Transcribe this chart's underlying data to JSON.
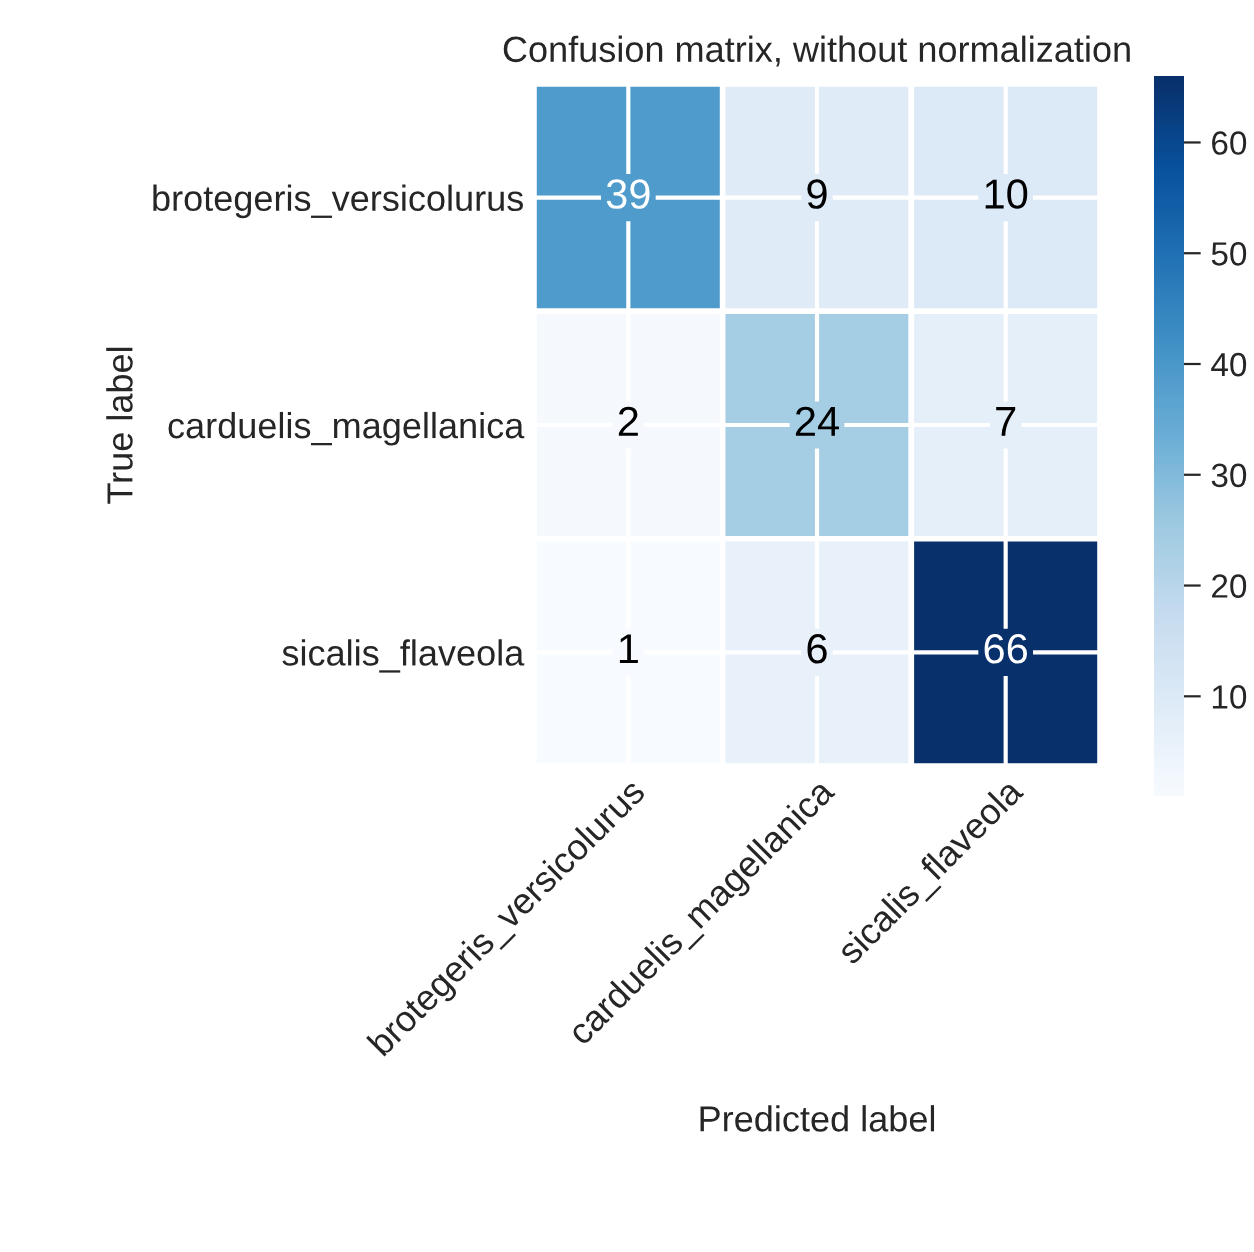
{
  "chart_data": {
    "type": "heatmap",
    "title": "Confusion matrix, without normalization",
    "xlabel": "Predicted label",
    "ylabel": "True label",
    "categories": [
      "brotegeris_versicolurus",
      "carduelis_magellanica",
      "sicalis_flaveola"
    ],
    "y_categories": [
      "brotegeris_versicolurus",
      "carduelis_magellanica",
      "sicalis_flaveola"
    ],
    "cells": [
      [
        39,
        9,
        10
      ],
      [
        2,
        24,
        7
      ],
      [
        1,
        6,
        66
      ]
    ],
    "clim": [
      1,
      66
    ],
    "cticks": [
      10,
      20,
      30,
      40,
      50,
      60
    ],
    "data_labels": true,
    "grid": true
  }
}
